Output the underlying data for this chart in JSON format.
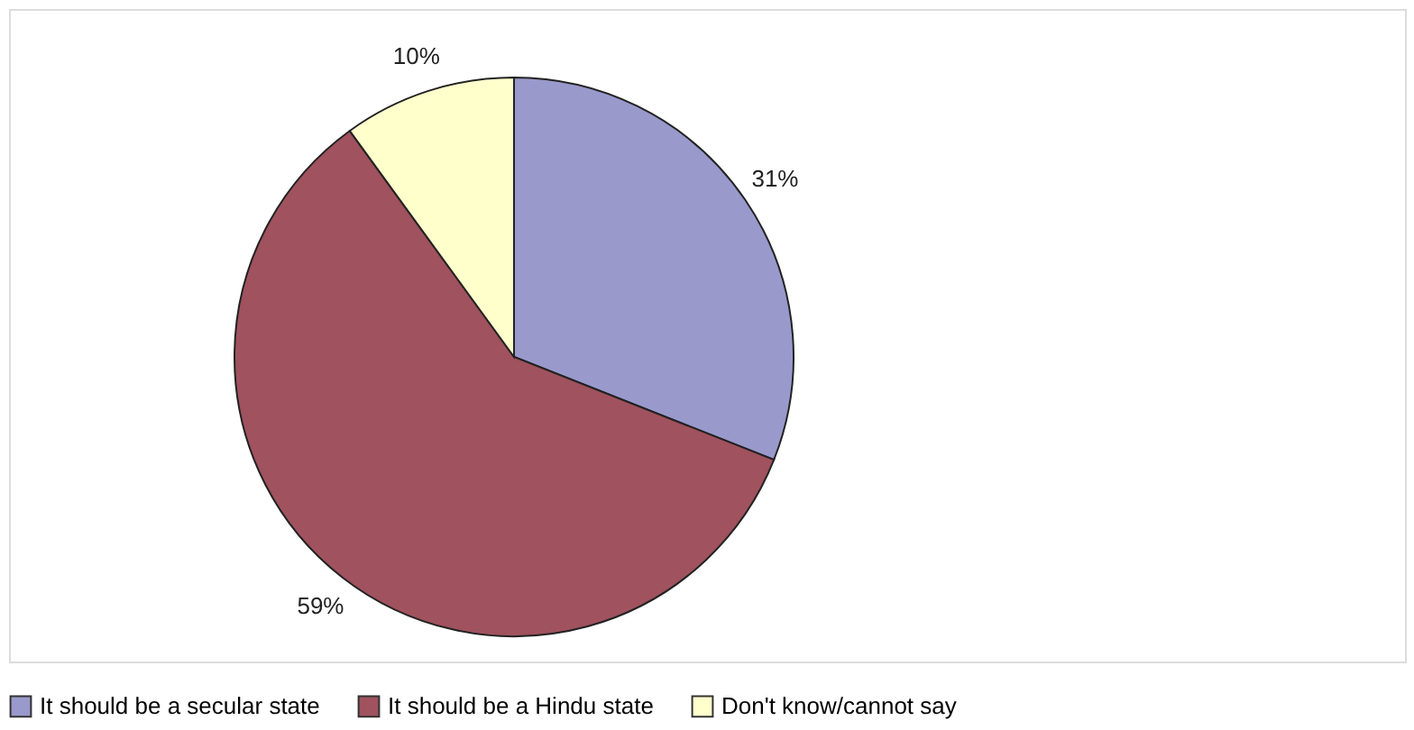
{
  "chart_data": {
    "type": "pie",
    "categories": [
      "It should be a secular state",
      "It should be a Hindu state",
      "Don't know/cannot say"
    ],
    "values": [
      31,
      59,
      10
    ],
    "value_labels": [
      "31%",
      "59%",
      "10%"
    ],
    "colors": [
      "#9999cc",
      "#a0525e",
      "#ffffcc"
    ],
    "legend": "bottom"
  }
}
